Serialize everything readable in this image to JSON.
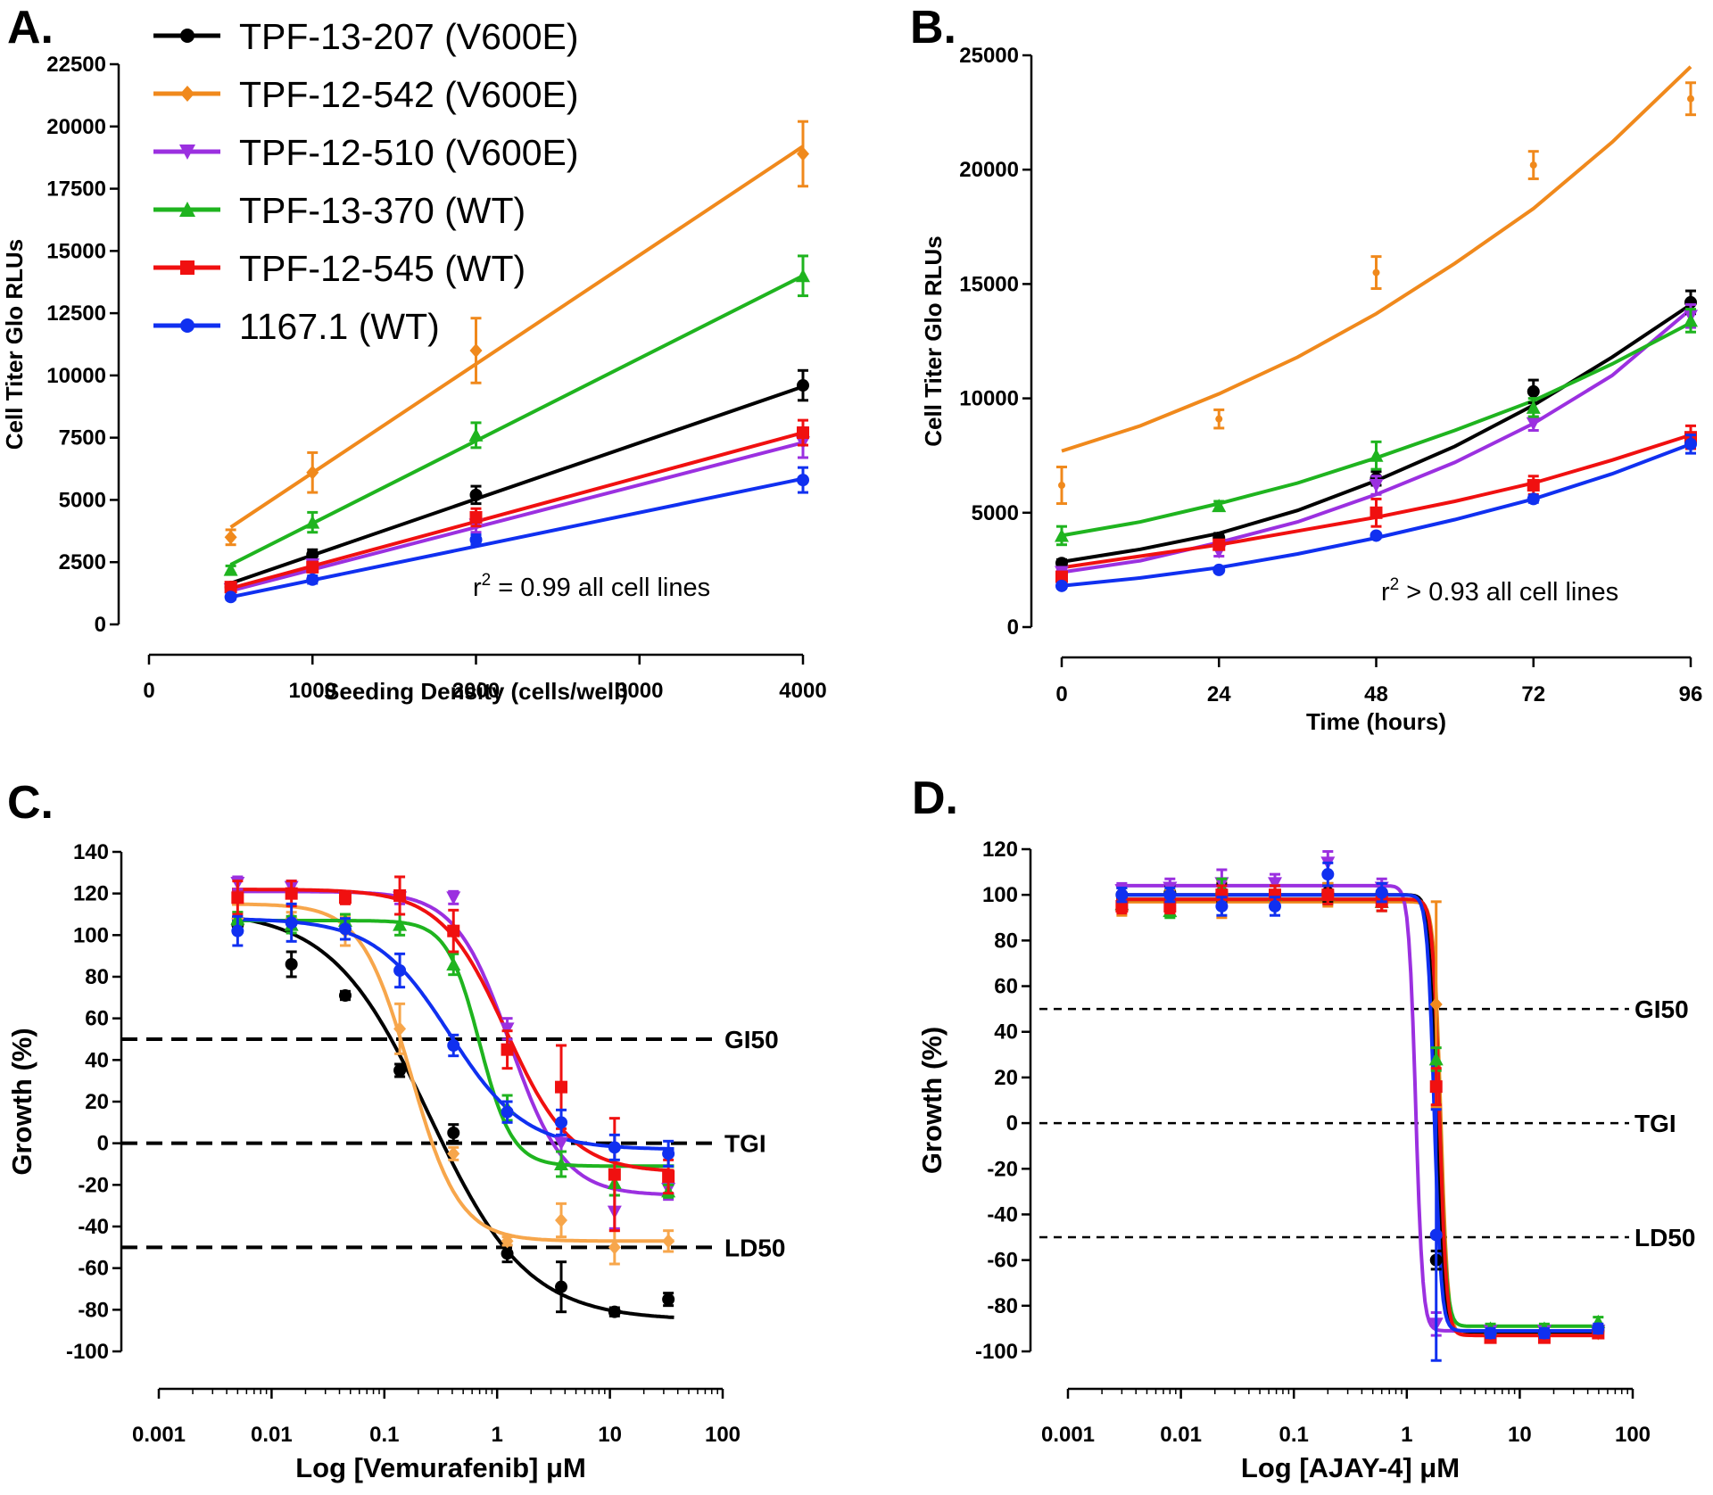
{
  "series_colors": {
    "s207": "#000000",
    "s542": "#f0891c",
    "s542c": "#f7a64b",
    "s510": "#9b30e0",
    "s370": "#1fb41f",
    "s545": "#f01010",
    "s1167": "#1030f0"
  },
  "legend": [
    {
      "key": "s207",
      "label": "TPF-13-207 (V600E)",
      "marker": "circle"
    },
    {
      "key": "s542",
      "label": "TPF-12-542 (V600E)",
      "marker": "diamond"
    },
    {
      "key": "s510",
      "label": "TPF-12-510 (V600E)",
      "marker": "triangle-down"
    },
    {
      "key": "s370",
      "label": "TPF-13-370 (WT)",
      "marker": "triangle-up"
    },
    {
      "key": "s545",
      "label": "TPF-12-545 (WT)",
      "marker": "square"
    },
    {
      "key": "s1167",
      "label": "1167.1 (WT)",
      "marker": "circle"
    }
  ],
  "chart_data": [
    {
      "panel": "A.",
      "type": "line",
      "xlabel": "Seeding Density (cells/well)",
      "ylabel": "Cell Titer Glo RLUs",
      "xlim": [
        0,
        4000
      ],
      "ylim": [
        0,
        22500
      ],
      "xticks": [
        0,
        1000,
        2000,
        3000,
        4000
      ],
      "yticks": [
        0,
        2500,
        5000,
        7500,
        10000,
        12500,
        15000,
        17500,
        20000,
        22500
      ],
      "annotation": {
        "prefix": "r",
        "sup": "2",
        "suffix": " = 0.99 all cell lines"
      },
      "x": [
        500,
        1000,
        2000,
        4000
      ],
      "series": [
        {
          "key": "s207",
          "name": "TPF-13-207 (V600E)",
          "values": [
            1500,
            2800,
            5200,
            9600
          ],
          "err": [
            150,
            200,
            350,
            600
          ]
        },
        {
          "key": "s542",
          "name": "TPF-12-542 (V600E)",
          "values": [
            3500,
            6100,
            11000,
            18900
          ],
          "err": [
            300,
            800,
            1300,
            1300
          ]
        },
        {
          "key": "s510",
          "name": "TPF-12-510 (V600E)",
          "values": [
            1400,
            2400,
            4000,
            7300
          ],
          "err": [
            150,
            200,
            300,
            600
          ]
        },
        {
          "key": "s370",
          "name": "TPF-13-370 (WT)",
          "values": [
            2200,
            4100,
            7600,
            14000
          ],
          "err": [
            150,
            400,
            500,
            800
          ]
        },
        {
          "key": "s545",
          "name": "TPF-12-545 (WT)",
          "values": [
            1500,
            2300,
            4300,
            7700
          ],
          "err": [
            100,
            200,
            350,
            500
          ]
        },
        {
          "key": "s1167",
          "name": "1167.1 (WT)",
          "values": [
            1100,
            1800,
            3400,
            5800
          ],
          "err": [
            100,
            150,
            200,
            500
          ]
        }
      ],
      "fits": [
        {
          "key": "s207",
          "x": [
            500,
            4000
          ],
          "values": [
            1650,
            9550
          ]
        },
        {
          "key": "s542",
          "x": [
            500,
            4000
          ],
          "values": [
            3900,
            19200
          ]
        },
        {
          "key": "s510",
          "x": [
            500,
            4000
          ],
          "values": [
            1350,
            7300
          ]
        },
        {
          "key": "s370",
          "x": [
            500,
            4000
          ],
          "values": [
            2400,
            14000
          ]
        },
        {
          "key": "s545",
          "x": [
            500,
            4000
          ],
          "values": [
            1450,
            7700
          ]
        },
        {
          "key": "s1167",
          "x": [
            500,
            4000
          ],
          "values": [
            1100,
            5850
          ]
        }
      ]
    },
    {
      "panel": "B.",
      "type": "line",
      "xlabel": "Time (hours)",
      "ylabel": "Cell Titer Glo RLUs",
      "xlim": [
        0,
        96
      ],
      "ylim": [
        0,
        25000
      ],
      "xticks": [
        0,
        24,
        48,
        72,
        96
      ],
      "yticks": [
        0,
        5000,
        10000,
        15000,
        20000,
        25000
      ],
      "annotation": {
        "prefix": "r",
        "sup": "2",
        "suffix": " > 0.93 all cell lines"
      },
      "x": [
        0,
        24,
        48,
        72,
        96
      ],
      "series": [
        {
          "key": "s207",
          "name": "TPF-13-207 (V600E)",
          "values": [
            2800,
            3900,
            6500,
            10300,
            14200
          ],
          "err": [
            150,
            200,
            300,
            500,
            500
          ]
        },
        {
          "key": "s542",
          "name": "TPF-12-542 (V600E)",
          "values": [
            6200,
            9100,
            15500,
            20200,
            23100
          ],
          "err": [
            800,
            400,
            700,
            600,
            700
          ]
        },
        {
          "key": "s510",
          "name": "TPF-12-510 (V600E)",
          "values": [
            2400,
            3300,
            6200,
            8900,
            13600
          ],
          "err": [
            100,
            200,
            400,
            300,
            500
          ]
        },
        {
          "key": "s370",
          "name": "TPF-13-370 (WT)",
          "values": [
            4000,
            5300,
            7500,
            9600,
            13400
          ],
          "err": [
            400,
            200,
            600,
            400,
            500
          ]
        },
        {
          "key": "s545",
          "name": "TPF-12-545 (WT)",
          "values": [
            2200,
            3600,
            5000,
            6200,
            8300
          ],
          "err": [
            100,
            200,
            600,
            400,
            500
          ]
        },
        {
          "key": "s1167",
          "name": "1167.1 (WT)",
          "values": [
            1800,
            2500,
            4000,
            5600,
            8000
          ],
          "err": [
            100,
            100,
            100,
            150,
            400
          ]
        }
      ],
      "fits": [
        {
          "key": "s207",
          "x": [
            0,
            12,
            24,
            36,
            48,
            60,
            72,
            84,
            96
          ],
          "values": [
            2850,
            3400,
            4100,
            5100,
            6400,
            7900,
            9700,
            11800,
            14100
          ]
        },
        {
          "key": "s542",
          "x": [
            0,
            12,
            24,
            36,
            48,
            60,
            72,
            84,
            96
          ],
          "values": [
            7700,
            8800,
            10200,
            11800,
            13700,
            15900,
            18300,
            21200,
            24500
          ]
        },
        {
          "key": "s510",
          "x": [
            0,
            12,
            24,
            36,
            48,
            60,
            72,
            84,
            96
          ],
          "values": [
            2400,
            2900,
            3700,
            4600,
            5800,
            7200,
            8900,
            11000,
            13900
          ]
        },
        {
          "key": "s370",
          "x": [
            0,
            12,
            24,
            36,
            48,
            60,
            72,
            84,
            96
          ],
          "values": [
            4000,
            4600,
            5400,
            6300,
            7400,
            8600,
            9900,
            11500,
            13300
          ]
        },
        {
          "key": "s545",
          "x": [
            0,
            12,
            24,
            36,
            48,
            60,
            72,
            84,
            96
          ],
          "values": [
            2600,
            3100,
            3600,
            4200,
            4800,
            5500,
            6300,
            7300,
            8400
          ]
        },
        {
          "key": "s1167",
          "x": [
            0,
            12,
            24,
            36,
            48,
            60,
            72,
            84,
            96
          ],
          "values": [
            1800,
            2150,
            2600,
            3200,
            3900,
            4700,
            5600,
            6700,
            8000
          ]
        }
      ]
    },
    {
      "panel": "C.",
      "type": "scatter",
      "xscale": "log",
      "xlabel": "Log [Vemurafenib] μM",
      "ylabel": "Growth (%)",
      "xlim": [
        0.001,
        100
      ],
      "ylim": [
        -100,
        140
      ],
      "xticks": [
        0.001,
        0.01,
        0.1,
        1,
        10,
        100
      ],
      "xticklabels": [
        "0.001",
        "0.01",
        "0.1",
        "1",
        "10",
        "100"
      ],
      "yticks": [
        -100,
        -80,
        -60,
        -40,
        -20,
        0,
        20,
        40,
        60,
        80,
        100,
        120,
        140
      ],
      "reference_lines": [
        {
          "label": "GI50",
          "y": 50
        },
        {
          "label": "TGI",
          "y": 0
        },
        {
          "label": "LD50",
          "y": -50
        }
      ],
      "x": [
        0.005,
        0.015,
        0.045,
        0.137,
        0.41,
        1.23,
        3.7,
        11,
        33
      ],
      "series": [
        {
          "key": "s207",
          "name": "TPF-13-207 (V600E)",
          "values": [
            105,
            86,
            71,
            35,
            5,
            -53,
            -69,
            -81,
            -75
          ],
          "err": [
            3,
            6,
            2,
            3,
            4,
            4,
            12,
            2,
            3
          ],
          "fit": {
            "top": 112,
            "bottom": -85,
            "ic50": 0.25,
            "hill": 1.0
          }
        },
        {
          "key": "s542",
          "name": "TPF-12-542 (V600E)",
          "values": [
            108,
            108,
            102,
            55,
            -5,
            -47,
            -37,
            -50,
            -47
          ],
          "err": [
            3,
            3,
            7,
            12,
            3,
            2,
            8,
            8,
            5
          ],
          "fit": {
            "top": 115,
            "bottom": -47,
            "ic50": 0.17,
            "hill": 2.0
          }
        },
        {
          "key": "s510",
          "name": "TPF-12-510 (V600E)",
          "values": [
            125,
            123,
            118,
            118,
            118,
            55,
            0,
            -33,
            -22
          ],
          "err": [
            3,
            3,
            2,
            3,
            3,
            5,
            4,
            8,
            5
          ],
          "fit": {
            "top": 121,
            "bottom": -25,
            "ic50": 1.3,
            "hill": 1.8
          }
        },
        {
          "key": "s370",
          "name": "TPF-13-370 (WT)",
          "values": [
            108,
            105,
            107,
            105,
            86,
            17,
            -10,
            -19,
            -23
          ],
          "err": [
            3,
            4,
            3,
            5,
            5,
            6,
            6,
            6,
            3
          ],
          "fit": {
            "top": 107,
            "bottom": -11,
            "ic50": 0.7,
            "hill": 3.0
          }
        },
        {
          "key": "s545",
          "name": "TPF-12-545 (WT)",
          "values": [
            118,
            120,
            118,
            119,
            102,
            45,
            27,
            -15,
            -16
          ],
          "err": [
            8,
            6,
            3,
            9,
            10,
            9,
            20,
            27,
            8
          ],
          "fit": {
            "top": 122,
            "bottom": -14,
            "ic50": 1.2,
            "hill": 1.5
          }
        },
        {
          "key": "s1167",
          "name": "1167.1 (WT)",
          "values": [
            102,
            106,
            103,
            83,
            47,
            15,
            10,
            -2,
            -5
          ],
          "err": [
            7,
            9,
            5,
            8,
            5,
            5,
            6,
            6,
            6
          ],
          "fit": {
            "top": 108,
            "bottom": -3,
            "ic50": 0.38,
            "hill": 1.3
          }
        }
      ]
    },
    {
      "panel": "D.",
      "type": "scatter",
      "xscale": "log",
      "xlabel": "Log [AJAY-4] μM",
      "ylabel": "Growth (%)",
      "xlim": [
        0.001,
        100
      ],
      "ylim": [
        -100,
        120
      ],
      "xticks": [
        0.001,
        0.01,
        0.1,
        1,
        10,
        100
      ],
      "xticklabels": [
        "0.001",
        "0.01",
        "0.1",
        "1",
        "10",
        "100"
      ],
      "yticks": [
        -100,
        -80,
        -60,
        -40,
        -20,
        0,
        20,
        40,
        60,
        80,
        100,
        120
      ],
      "reference_lines": [
        {
          "label": "GI50",
          "y": 50
        },
        {
          "label": "TGI",
          "y": 0
        },
        {
          "label": "LD50",
          "y": -50
        }
      ],
      "x": [
        0.003,
        0.008,
        0.023,
        0.068,
        0.2,
        0.6,
        1.82,
        5.5,
        16.5,
        49.5
      ],
      "series": [
        {
          "key": "s207",
          "name": "TPF-13-207 (V600E)",
          "values": [
            100,
            101,
            101,
            100,
            101,
            101,
            -60,
            -93,
            -92,
            -91
          ],
          "err": [
            3,
            3,
            4,
            4,
            4,
            4,
            4,
            2,
            2,
            2
          ],
          "fit": {
            "top": 100,
            "bottom": -92,
            "ic50": 1.83,
            "hill": 14
          }
        },
        {
          "key": "s542",
          "name": "TPF-12-542 (V600E)",
          "values": [
            94,
            97,
            98,
            100,
            100,
            97,
            52,
            -93,
            -92,
            -92
          ],
          "err": [
            3,
            5,
            8,
            4,
            5,
            4,
            45,
            2,
            2,
            2
          ],
          "fit": {
            "top": 97,
            "bottom": -93,
            "ic50": 2.0,
            "hill": 14
          }
        },
        {
          "key": "s510",
          "name": "TPF-12-510 (V600E)",
          "values": [
            102,
            103,
            105,
            105,
            114,
            103,
            -88,
            -91,
            -91,
            -91
          ],
          "err": [
            3,
            4,
            6,
            4,
            5,
            4,
            5,
            2,
            2,
            2
          ],
          "fit": {
            "top": 104,
            "bottom": -91,
            "ic50": 1.2,
            "hill": 14
          }
        },
        {
          "key": "s370",
          "name": "TPF-13-370 (WT)",
          "values": [
            96,
            93,
            103,
            100,
            100,
            97,
            28,
            -90,
            -90,
            -87
          ],
          "err": [
            3,
            3,
            4,
            4,
            4,
            4,
            5,
            2,
            2,
            2
          ],
          "fit": {
            "top": 98,
            "bottom": -89,
            "ic50": 1.95,
            "hill": 14
          }
        },
        {
          "key": "s545",
          "name": "TPF-12-545 (WT)",
          "values": [
            95,
            95,
            100,
            100,
            100,
            97,
            16,
            -94,
            -94,
            -92
          ],
          "err": [
            3,
            3,
            4,
            4,
            4,
            4,
            8,
            2,
            2,
            2
          ],
          "fit": {
            "top": 98,
            "bottom": -93,
            "ic50": 1.95,
            "hill": 14
          }
        },
        {
          "key": "s1167",
          "name": "1167.1 (WT)",
          "values": [
            100,
            100,
            95,
            95,
            109,
            101,
            -49,
            -92,
            -92,
            -90
          ],
          "err": [
            3,
            3,
            4,
            4,
            5,
            4,
            55,
            2,
            2,
            2
          ],
          "fit": {
            "top": 100,
            "bottom": -91,
            "ic50": 1.75,
            "hill": 14
          }
        }
      ]
    }
  ]
}
